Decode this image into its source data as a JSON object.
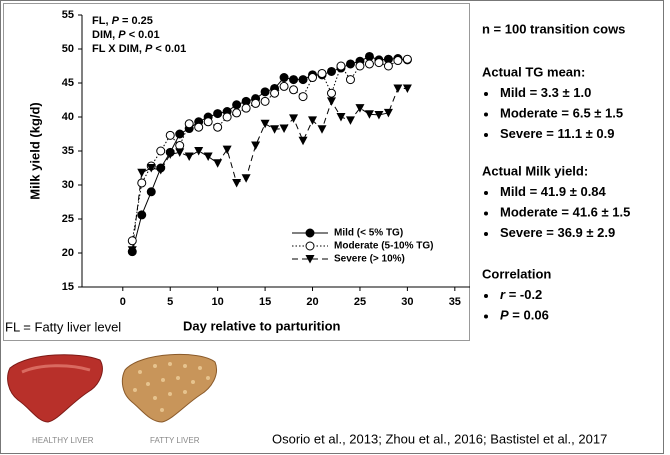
{
  "chart_data": {
    "type": "line",
    "xlabel": "Day relative to parturition",
    "ylabel": "Milk yield (kg/d)",
    "annotations": [
      {
        "text": "FL,",
        "stat": "P",
        "value": "= 0.25"
      },
      {
        "text": "DIM,",
        "stat": "P",
        "value": "< 0.01"
      },
      {
        "text": "FL X DIM,",
        "stat": "P",
        "value": "< 0.01"
      }
    ],
    "x": [
      1,
      2,
      3,
      4,
      5,
      6,
      7,
      8,
      9,
      10,
      11,
      12,
      13,
      14,
      15,
      16,
      17,
      18,
      19,
      20,
      21,
      22,
      23,
      24,
      25,
      26,
      27,
      28,
      29,
      30
    ],
    "series": [
      {
        "name": "Mild (< 5% TG)",
        "color": "#000000",
        "marker": "circle-filled",
        "dash": "solid",
        "values": [
          20.2,
          25.6,
          29,
          32.5,
          34.8,
          37.5,
          38.3,
          39.3,
          40,
          40.5,
          40.8,
          41.8,
          42.3,
          42.7,
          43.7,
          44.2,
          45.8,
          45.5,
          45.5,
          46.2,
          46.2,
          46.7,
          47.2,
          47.8,
          48.2,
          48.9,
          48.4,
          48.5,
          48.6,
          48.4
        ]
      },
      {
        "name": "Moderate (5-10% TG)",
        "color": "#000000",
        "marker": "circle-open",
        "dash": "dotted",
        "values": [
          21.8,
          30.3,
          32.8,
          35,
          37.3,
          35.8,
          39,
          38.5,
          39.3,
          38.5,
          40,
          40.6,
          41.3,
          42,
          42.3,
          43.5,
          44.5,
          44,
          43,
          45.8,
          46.4,
          43.5,
          47.5,
          45.5,
          47.5,
          47.8,
          48,
          47.5,
          48.3,
          48.5
        ]
      },
      {
        "name": "Severe (> 10%)",
        "color": "#000000",
        "marker": "triangle",
        "dash": "dashed",
        "values": [
          20.4,
          31.8,
          32.5,
          32.2,
          34.5,
          34.8,
          34.2,
          35,
          34.2,
          33.2,
          35.2,
          30.3,
          31,
          35.8,
          39,
          38.2,
          38.3,
          39.8,
          36.5,
          39.5,
          38.2,
          42.3,
          40,
          39.5,
          41.3,
          40.4,
          40.3,
          40.6,
          44.2,
          44.2
        ]
      }
    ],
    "xlim": [
      -4.3,
      36.6
    ],
    "xticks": [
      0,
      5,
      10,
      15,
      20,
      25,
      30,
      35
    ],
    "ylim": [
      15,
      55
    ],
    "yticks": [
      15,
      20,
      25,
      30,
      35,
      40,
      45,
      50,
      55
    ],
    "grid": false,
    "legend": "lower right"
  },
  "panel": {
    "header": "n = 100 transition cows",
    "sections": [
      {
        "title": "Actual TG mean:",
        "items": [
          {
            "text": "Mild = 3.3 ± 1.0"
          },
          {
            "text": "Moderate = 6.5 ± 1.5"
          },
          {
            "text": "Severe = 11.1 ± 0.9"
          }
        ]
      },
      {
        "title": "Actual Milk yield:",
        "items": [
          {
            "text": "Mild = 41.9 ± 0.84"
          },
          {
            "text": "Moderate = 41.6 ± 1.5"
          },
          {
            "text": "Severe = 36.9 ± 2.9"
          }
        ]
      },
      {
        "title": "Correlation",
        "items": [
          {
            "stat": "r",
            "text": "= -0.2"
          },
          {
            "stat": "P",
            "text": "= 0.06"
          }
        ]
      }
    ]
  },
  "footer": {
    "note": "FL = Fatty liver level",
    "images": [
      "HEALTHY LIVER",
      "FATTY LIVER"
    ],
    "citation": "Osorio et al., 2013; Zhou et al., 2016; Bastistel et al., 2017"
  }
}
